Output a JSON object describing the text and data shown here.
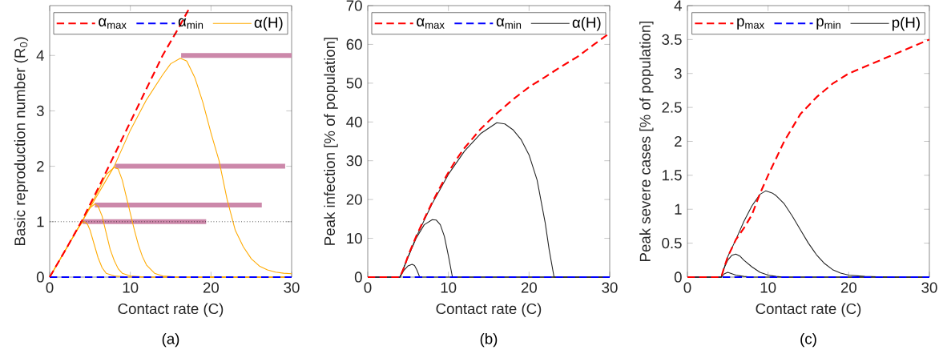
{
  "chart_data": [
    {
      "type": "line",
      "xlabel": "Contact rate (C)",
      "ylabel": "Basic reproduction number (R$_{0}$)",
      "annotations": [
        "(a)"
      ],
      "xlim": [
        0,
        30
      ],
      "ylim": [
        0,
        4.9
      ],
      "xticks": [
        0,
        10,
        20,
        30
      ],
      "yticks": [
        0,
        1,
        2,
        3,
        4
      ],
      "legend": "top",
      "ref_lines": [
        {
          "axis": "y",
          "value": 1,
          "color": "#000000",
          "line_style": "dotted"
        }
      ],
      "series": [
        {
          "name": "α$_{max}$",
          "color": "#ff0000",
          "line_style": "dashed",
          "x": [
            0,
            2,
            4,
            6,
            8,
            10,
            12,
            14,
            16,
            17.3
          ],
          "values": [
            0,
            0.5,
            1.02,
            1.6,
            2.2,
            2.8,
            3.4,
            4.0,
            4.5,
            4.85
          ]
        },
        {
          "name": "α$_{min}$",
          "color": "#0000ff",
          "line_style": "dashed",
          "x": [
            0,
            30
          ],
          "values": [
            0,
            0
          ]
        },
        {
          "name": "α(H)",
          "color": "#ffaa00",
          "line_style": "solid",
          "x": [
            0,
            2,
            3,
            3.5,
            4,
            4.3,
            4.7,
            5,
            5.5,
            6,
            6.5,
            7,
            8,
            10,
            30
          ],
          "values": [
            0,
            0.5,
            0.75,
            0.88,
            0.98,
            1.0,
            0.95,
            0.85,
            0.6,
            0.35,
            0.17,
            0.07,
            0.02,
            0,
            0
          ]
        },
        {
          "color": "#ffaa00",
          "line_style": "solid",
          "x": [
            0,
            4,
            5,
            5.6,
            6,
            6.5,
            7,
            7.5,
            8,
            8.5,
            9,
            10,
            12,
            30
          ],
          "values": [
            0,
            1.0,
            1.25,
            1.32,
            1.28,
            1.1,
            0.8,
            0.5,
            0.3,
            0.15,
            0.07,
            0.02,
            0,
            0
          ]
        },
        {
          "color": "#ffaa00",
          "line_style": "solid",
          "x": [
            0,
            4,
            6,
            7,
            8,
            8.5,
            9,
            9.5,
            10,
            10.5,
            11,
            11.5,
            12,
            13,
            14,
            16,
            30
          ],
          "values": [
            0,
            1,
            1.55,
            1.85,
            1.98,
            1.95,
            1.75,
            1.45,
            1.15,
            0.85,
            0.58,
            0.37,
            0.22,
            0.07,
            0.02,
            0,
            0
          ]
        },
        {
          "color": "#ffaa00",
          "line_style": "solid",
          "x": [
            0,
            4,
            8,
            10,
            12,
            14,
            15,
            16.2,
            17,
            18,
            19,
            20,
            21,
            22,
            23,
            24,
            25,
            26,
            27,
            28,
            29,
            30
          ],
          "values": [
            0,
            1,
            2.0,
            2.65,
            3.2,
            3.65,
            3.85,
            3.95,
            3.9,
            3.6,
            3.15,
            2.6,
            2.1,
            1.4,
            0.85,
            0.55,
            0.33,
            0.2,
            0.13,
            0.09,
            0.07,
            0.06
          ]
        },
        {
          "color": "#cc88aa",
          "line_style": "solid",
          "x": [
            16.3,
            30
          ],
          "values": [
            4,
            4
          ]
        },
        {
          "color": "#cc88aa",
          "line_style": "solid",
          "x": [
            8.1,
            29.2
          ],
          "values": [
            2,
            2
          ]
        },
        {
          "color": "#cc88aa",
          "line_style": "solid",
          "x": [
            5.6,
            26.3
          ],
          "values": [
            1.3,
            1.3
          ]
        },
        {
          "color": "#cc88aa",
          "line_style": "solid",
          "x": [
            4.1,
            19.4
          ],
          "values": [
            1,
            1
          ]
        }
      ]
    },
    {
      "type": "line",
      "xlabel": "Contact rate (C)",
      "ylabel": "Peak infection [% of population]",
      "annotations": [
        "(b)"
      ],
      "xlim": [
        0,
        30
      ],
      "ylim": [
        0,
        70
      ],
      "xticks": [
        0,
        10,
        20,
        30
      ],
      "yticks": [
        0,
        10,
        20,
        30,
        40,
        50,
        60,
        70
      ],
      "legend": "top",
      "series": [
        {
          "name": "α$_{max}$",
          "color": "#ff0000",
          "line_style": "dashed",
          "x": [
            0,
            4,
            4.5,
            5,
            6,
            7,
            8,
            9,
            10,
            11,
            12,
            14,
            16,
            18,
            20,
            22,
            24,
            26,
            28,
            30
          ],
          "values": [
            0,
            0,
            2.5,
            5.5,
            10.5,
            15,
            19.3,
            23.3,
            27,
            30.4,
            33.3,
            38.2,
            42.2,
            45.8,
            49,
            51.6,
            54.3,
            56.8,
            59.9,
            62.9
          ]
        },
        {
          "name": "α$_{min}$",
          "color": "#0000ff",
          "line_style": "dashed",
          "x": [
            0,
            30
          ],
          "values": [
            0,
            0
          ]
        },
        {
          "name": "α(H)",
          "color": "#222222",
          "line_style": "solid",
          "x": [
            0,
            4,
            4.5,
            5,
            5.5,
            5.8,
            6.1,
            6.4,
            6.5,
            30
          ],
          "values": [
            0,
            0,
            1.8,
            2.9,
            3.3,
            3.0,
            1.8,
            0.2,
            0,
            0
          ]
        },
        {
          "color": "#222222",
          "line_style": "solid",
          "x": [
            0,
            4,
            5,
            6,
            7,
            8,
            8.5,
            9,
            9.5,
            10,
            10.5,
            30
          ],
          "values": [
            0,
            0,
            5.2,
            10,
            13.5,
            14.8,
            14.7,
            13.5,
            10.5,
            5.5,
            0,
            0
          ]
        },
        {
          "color": "#222222",
          "line_style": "solid",
          "x": [
            0,
            4,
            6,
            8,
            10,
            12,
            14,
            16,
            17,
            18,
            19,
            20,
            21,
            22,
            22.5,
            23.1,
            30
          ],
          "values": [
            0,
            0,
            10.3,
            19,
            26.5,
            32.5,
            37,
            39.8,
            39.5,
            38,
            35.5,
            31.5,
            25,
            14,
            7,
            0,
            0
          ]
        }
      ]
    },
    {
      "type": "line",
      "xlabel": "Contact rate (C)",
      "ylabel": "Peak severe cases [% of population]",
      "annotations": [
        "(c)"
      ],
      "xlim": [
        0,
        30
      ],
      "ylim": [
        0,
        4
      ],
      "xticks": [
        0,
        10,
        20,
        30
      ],
      "yticks": [
        0,
        0.5,
        1,
        1.5,
        2,
        2.5,
        3,
        3.5,
        4
      ],
      "legend": "top",
      "series": [
        {
          "name": "p$_{max}$",
          "color": "#ff0000",
          "line_style": "dashed",
          "x": [
            0,
            4.2,
            4.5,
            5,
            6,
            7,
            8,
            9,
            10,
            11,
            12,
            14,
            16,
            18,
            20,
            22,
            25,
            28,
            30
          ],
          "values": [
            0,
            0,
            0.12,
            0.3,
            0.55,
            0.72,
            0.92,
            1.23,
            1.5,
            1.75,
            2.0,
            2.4,
            2.65,
            2.85,
            3.0,
            3.1,
            3.25,
            3.4,
            3.5
          ]
        },
        {
          "name": "p$_{min}$",
          "color": "#0000ff",
          "line_style": "dashed",
          "x": [
            0,
            30
          ],
          "values": [
            0,
            0
          ]
        },
        {
          "name": "p(H)",
          "color": "#222222",
          "line_style": "solid",
          "x": [
            0,
            4.2,
            5,
            6,
            7,
            8,
            9,
            9.7,
            10.5,
            11,
            12,
            13,
            14,
            15,
            16,
            17,
            18,
            19,
            20,
            22,
            25,
            30
          ],
          "values": [
            0,
            0,
            0.3,
            0.55,
            0.82,
            1.05,
            1.22,
            1.27,
            1.24,
            1.2,
            1.08,
            0.9,
            0.7,
            0.5,
            0.33,
            0.2,
            0.11,
            0.06,
            0.03,
            0.01,
            0,
            0
          ]
        },
        {
          "color": "#222222",
          "line_style": "solid",
          "x": [
            0,
            4.2,
            4.5,
            5,
            5.5,
            6,
            6.5,
            7,
            8,
            9,
            10,
            11,
            12,
            30
          ],
          "values": [
            0,
            0,
            0.12,
            0.25,
            0.32,
            0.34,
            0.31,
            0.25,
            0.15,
            0.07,
            0.03,
            0.01,
            0,
            0
          ]
        },
        {
          "color": "#222222",
          "line_style": "solid",
          "x": [
            0,
            4.2,
            4.6,
            5,
            5.5,
            6,
            7,
            8,
            30
          ],
          "values": [
            0,
            0,
            0.05,
            0.07,
            0.05,
            0.03,
            0.01,
            0,
            0
          ]
        }
      ]
    }
  ]
}
